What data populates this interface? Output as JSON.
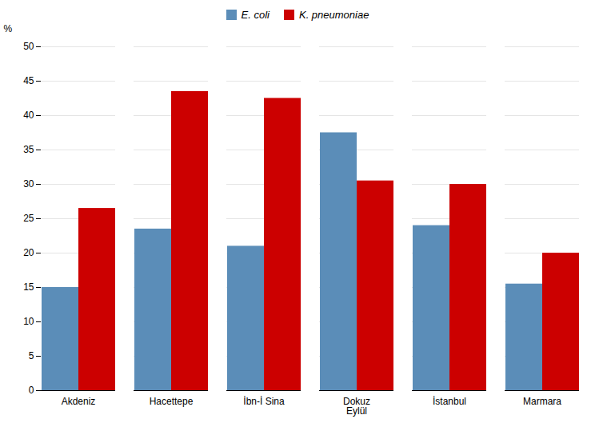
{
  "chart_data": {
    "type": "bar",
    "ylabel": "%",
    "categories": [
      "Akdeniz",
      "Hacettepe",
      "İbn-İ Sina",
      "Dokuz\nEylül",
      "İstanbul",
      "Marmara"
    ],
    "series": [
      {
        "name": "E. coli",
        "color": "#5b8db8",
        "values": [
          15.0,
          23.5,
          21.0,
          37.5,
          24.0,
          15.5
        ]
      },
      {
        "name": "K. pneumoniae",
        "color": "#cc0000",
        "values": [
          26.5,
          43.5,
          42.5,
          30.5,
          30.0,
          20.0
        ]
      }
    ],
    "ylim": [
      0,
      50
    ],
    "yticks": [
      0,
      5,
      10,
      15,
      20,
      25,
      30,
      35,
      40,
      45,
      50
    ],
    "grid": true,
    "legend": "top"
  }
}
